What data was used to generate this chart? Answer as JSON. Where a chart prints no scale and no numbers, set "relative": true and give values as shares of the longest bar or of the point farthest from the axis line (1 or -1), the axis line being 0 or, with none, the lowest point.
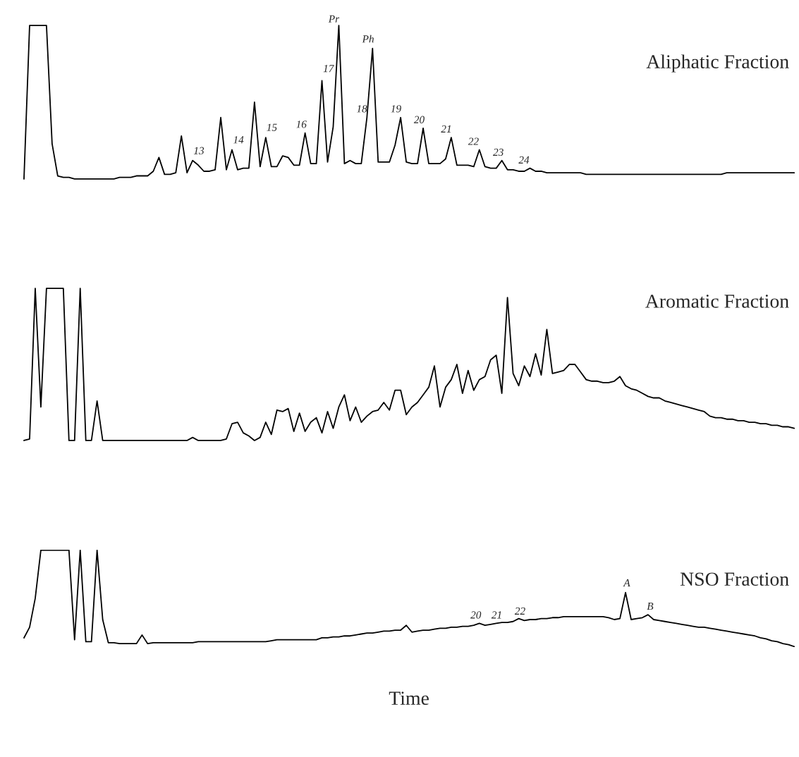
{
  "chart_data": [
    {
      "type": "line",
      "title": "Aliphatic Fraction",
      "relative": true,
      "categories": [
        null,
        null,
        null,
        null,
        null,
        null,
        null,
        null,
        null,
        null,
        null,
        null,
        null,
        null,
        null,
        null,
        null,
        null,
        null,
        null,
        null,
        null,
        null,
        null,
        null,
        null,
        null,
        null,
        null,
        null,
        null,
        null,
        null,
        null,
        null,
        null,
        null,
        null,
        null,
        null,
        null,
        null,
        null,
        null,
        null,
        null,
        null,
        null,
        null,
        null,
        null,
        null,
        null,
        null,
        null,
        null,
        null,
        null,
        null,
        null,
        null,
        null,
        null,
        null,
        null,
        null,
        null,
        null,
        null,
        null,
        null,
        null,
        null,
        null,
        null,
        null,
        null,
        null,
        null,
        null,
        null,
        null,
        null,
        null,
        null,
        null,
        null,
        null,
        null,
        null,
        null,
        null,
        null,
        null,
        null,
        null,
        null,
        null,
        null,
        null,
        null,
        null,
        null,
        null,
        null,
        null,
        null,
        null,
        null,
        null,
        null,
        null,
        null,
        null,
        null,
        null,
        null,
        null,
        null,
        null,
        null,
        null,
        null,
        null,
        null,
        null,
        null,
        null,
        null,
        null,
        null,
        null,
        null,
        null,
        null,
        null,
        null,
        null
      ],
      "series": [
        {
          "color": "#000000",
          "values": [
            0,
            1,
            1,
            1,
            1,
            0.23,
            0.02,
            0.01,
            0.01,
            0,
            0,
            0,
            0,
            0,
            0,
            0,
            0,
            0.01,
            0.01,
            0.01,
            0.02,
            0.02,
            0.02,
            0.05,
            0.14,
            0.03,
            0.03,
            0.04,
            0.28,
            0.04,
            0.12,
            0.09,
            0.05,
            0.05,
            0.06,
            0.4,
            0.06,
            0.19,
            0.06,
            0.07,
            0.07,
            0.5,
            0.08,
            0.27,
            0.08,
            0.08,
            0.15,
            0.14,
            0.09,
            0.09,
            0.3,
            0.1,
            0.1,
            0.64,
            0.11,
            0.34,
            1,
            0.1,
            0.12,
            0.1,
            0.1,
            0.4,
            0.85,
            0.11,
            0.11,
            0.11,
            0.22,
            0.4,
            0.11,
            0.1,
            0.1,
            0.33,
            0.1,
            0.1,
            0.1,
            0.13,
            0.27,
            0.09,
            0.09,
            0.09,
            0.08,
            0.19,
            0.08,
            0.07,
            0.07,
            0.12,
            0.06,
            0.06,
            0.05,
            0.05,
            0.07,
            0.05,
            0.05,
            0.04,
            0.04,
            0.04,
            0.04,
            0.04,
            0.04,
            0.04,
            0.03,
            0.03,
            0.03,
            0.03,
            0.03,
            0.03,
            0.03,
            0.03,
            0.03,
            0.03,
            0.03,
            0.03,
            0.03,
            0.03,
            0.03,
            0.03,
            0.03,
            0.03,
            0.03,
            0.03,
            0.03,
            0.03,
            0.03,
            0.03,
            0.03,
            0.04,
            0.04,
            0.04,
            0.04,
            0.04,
            0.04,
            0.04,
            0.04,
            0.04,
            0.04,
            0.04,
            0.04,
            0.04
          ]
        }
      ],
      "annotations": [
        "13",
        "14",
        "15",
        "16",
        "17",
        "Pr",
        "18",
        "Ph",
        "19",
        "20",
        "21",
        "22",
        "23",
        "24"
      ]
    },
    {
      "type": "line",
      "title": "Aromatic Fraction",
      "relative": true,
      "categories": [
        null,
        null,
        null,
        null,
        null,
        null,
        null,
        null,
        null,
        null,
        null,
        null,
        null,
        null,
        null,
        null,
        null,
        null,
        null,
        null,
        null,
        null,
        null,
        null,
        null,
        null,
        null,
        null,
        null,
        null,
        null,
        null,
        null,
        null,
        null,
        null,
        null,
        null,
        null,
        null,
        null,
        null,
        null,
        null,
        null,
        null,
        null,
        null,
        null,
        null,
        null,
        null,
        null,
        null,
        null,
        null,
        null,
        null,
        null,
        null,
        null,
        null,
        null,
        null,
        null,
        null,
        null,
        null,
        null,
        null,
        null,
        null,
        null,
        null,
        null,
        null,
        null,
        null,
        null,
        null,
        null,
        null,
        null,
        null,
        null,
        null,
        null,
        null,
        null,
        null,
        null,
        null,
        null,
        null,
        null,
        null,
        null,
        null,
        null,
        null,
        null,
        null,
        null,
        null,
        null,
        null,
        null,
        null,
        null,
        null,
        null,
        null,
        null,
        null,
        null,
        null,
        null,
        null,
        null,
        null,
        null,
        null,
        null,
        null,
        null,
        null,
        null,
        null,
        null,
        null,
        null,
        null,
        null,
        null,
        null,
        null,
        null,
        null
      ],
      "series": [
        {
          "color": "#000000",
          "values": [
            0,
            0.01,
            1,
            0.22,
            1,
            1,
            1,
            1,
            0,
            0,
            1,
            0,
            0,
            0.26,
            0,
            0,
            0,
            0,
            0,
            0,
            0,
            0,
            0,
            0,
            0,
            0,
            0,
            0,
            0,
            0,
            0.02,
            0,
            0,
            0,
            0,
            0,
            0.01,
            0.11,
            0.12,
            0.05,
            0.03,
            0,
            0.02,
            0.12,
            0.04,
            0.2,
            0.19,
            0.21,
            0.06,
            0.18,
            0.06,
            0.12,
            0.15,
            0.05,
            0.19,
            0.08,
            0.22,
            0.3,
            0.13,
            0.22,
            0.12,
            0.16,
            0.19,
            0.2,
            0.25,
            0.2,
            0.33,
            0.33,
            0.17,
            0.22,
            0.25,
            0.3,
            0.35,
            0.49,
            0.22,
            0.35,
            0.4,
            0.5,
            0.31,
            0.46,
            0.33,
            0.4,
            0.42,
            0.53,
            0.56,
            0.31,
            0.94,
            0.44,
            0.36,
            0.49,
            0.42,
            0.57,
            0.43,
            0.73,
            0.44,
            0.45,
            0.46,
            0.5,
            0.5,
            0.45,
            0.4,
            0.39,
            0.39,
            0.38,
            0.38,
            0.39,
            0.42,
            0.36,
            0.34,
            0.33,
            0.31,
            0.29,
            0.28,
            0.28,
            0.26,
            0.25,
            0.24,
            0.23,
            0.22,
            0.21,
            0.2,
            0.19,
            0.16,
            0.15,
            0.15,
            0.14,
            0.14,
            0.13,
            0.13,
            0.12,
            0.12,
            0.11,
            0.11,
            0.1,
            0.1,
            0.09,
            0.09,
            0.08
          ]
        }
      ]
    },
    {
      "type": "line",
      "title": "NSO Fraction",
      "xlabel": "Time",
      "relative": true,
      "categories": [
        null,
        null,
        null,
        null,
        null,
        null,
        null,
        null,
        null,
        null,
        null,
        null,
        null,
        null,
        null,
        null,
        null,
        null,
        null,
        null,
        null,
        null,
        null,
        null,
        null,
        null,
        null,
        null,
        null,
        null,
        null,
        null,
        null,
        null,
        null,
        null,
        null,
        null,
        null,
        null,
        null,
        null,
        null,
        null,
        null,
        null,
        null,
        null,
        null,
        null,
        null,
        null,
        null,
        null,
        null,
        null,
        null,
        null,
        null,
        null,
        null,
        null,
        null,
        null,
        null,
        null,
        null,
        null,
        null,
        null,
        null,
        null,
        null,
        null,
        null,
        null,
        null,
        null,
        null,
        null,
        null,
        null,
        null,
        null,
        null,
        null,
        null,
        null,
        null,
        null,
        null,
        null,
        null,
        null,
        null,
        null,
        null,
        null,
        null,
        null,
        null,
        null,
        null,
        null,
        null,
        null,
        null,
        null,
        null,
        null,
        null,
        null,
        null,
        null,
        null,
        null,
        null,
        null,
        null,
        null,
        null,
        null,
        null,
        null,
        null,
        null,
        null,
        null,
        null,
        null,
        null,
        null,
        null,
        null,
        null,
        null,
        null,
        null
      ],
      "series": [
        {
          "color": "#000000",
          "values": [
            0.09,
            0.2,
            0.5,
            1,
            1,
            1,
            1,
            1,
            1,
            0.07,
            1,
            0.05,
            0.05,
            1,
            0.28,
            0.04,
            0.04,
            0.03,
            0.03,
            0.03,
            0.03,
            0.12,
            0.03,
            0.04,
            0.04,
            0.04,
            0.04,
            0.04,
            0.04,
            0.04,
            0.04,
            0.05,
            0.05,
            0.05,
            0.05,
            0.05,
            0.05,
            0.05,
            0.05,
            0.05,
            0.05,
            0.05,
            0.05,
            0.05,
            0.06,
            0.07,
            0.07,
            0.07,
            0.07,
            0.07,
            0.07,
            0.07,
            0.07,
            0.09,
            0.09,
            0.1,
            0.1,
            0.11,
            0.11,
            0.12,
            0.13,
            0.14,
            0.14,
            0.15,
            0.16,
            0.16,
            0.17,
            0.17,
            0.22,
            0.15,
            0.16,
            0.17,
            0.17,
            0.18,
            0.19,
            0.19,
            0.2,
            0.2,
            0.21,
            0.21,
            0.22,
            0.24,
            0.22,
            0.23,
            0.24,
            0.25,
            0.25,
            0.26,
            0.29,
            0.27,
            0.28,
            0.28,
            0.29,
            0.29,
            0.3,
            0.3,
            0.31,
            0.31,
            0.31,
            0.31,
            0.31,
            0.31,
            0.31,
            0.31,
            0.3,
            0.28,
            0.29,
            0.56,
            0.28,
            0.29,
            0.3,
            0.33,
            0.28,
            0.27,
            0.26,
            0.25,
            0.24,
            0.23,
            0.22,
            0.21,
            0.2,
            0.2,
            0.19,
            0.18,
            0.17,
            0.16,
            0.15,
            0.14,
            0.13,
            0.12,
            0.11,
            0.09,
            0.08,
            0.06,
            0.05,
            0.03,
            0.02,
            0
          ]
        }
      ],
      "annotations": [
        "20",
        "21",
        "22",
        "A",
        "B"
      ]
    }
  ]
}
